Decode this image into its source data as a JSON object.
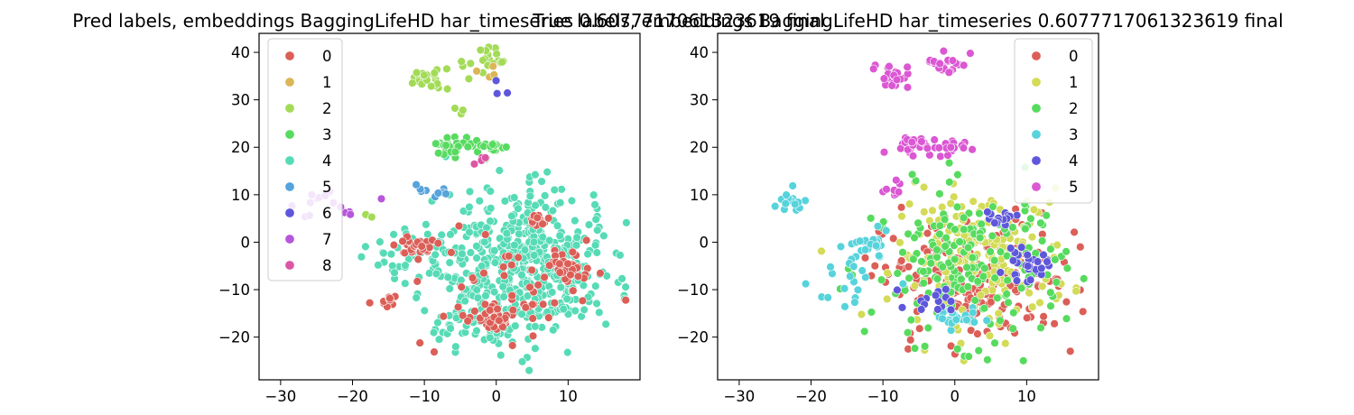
{
  "chart_data": [
    {
      "type": "scatter",
      "title": "Pred labels, embeddings BaggingLifeHD har_timeseries 0.6077717061323619 final",
      "xlim": [
        -33,
        20
      ],
      "ylim": [
        -29,
        44
      ],
      "xticks": [
        -30,
        -20,
        -10,
        0,
        10
      ],
      "yticks": [
        -20,
        -10,
        0,
        10,
        20,
        30,
        40
      ],
      "xtick_labels": [
        "−30",
        "−20",
        "−10",
        "0",
        "10"
      ],
      "ytick_labels": [
        "−20",
        "−10",
        "0",
        "10",
        "20",
        "30",
        "40"
      ],
      "grid": false,
      "legend_position": "upper-left",
      "legend": [
        "0",
        "1",
        "2",
        "3",
        "4",
        "5",
        "6",
        "7",
        "8"
      ],
      "colors": [
        "#db5f57",
        "#dbb657",
        "#a3db57",
        "#57db5f",
        "#57dbb6",
        "#57a3db",
        "#5f57db",
        "#b657db",
        "#db57a3"
      ],
      "clusters": [
        {
          "label": 4,
          "cx": 4,
          "cy": -5,
          "sx": 6.2,
          "sy": 7.5,
          "n": 520
        },
        {
          "label": 4,
          "cx": -12,
          "cy": -3,
          "sx": 3,
          "sy": 4,
          "n": 40
        },
        {
          "label": 4,
          "cx": -4,
          "cy": -18,
          "sx": 4,
          "sy": 3,
          "n": 40
        },
        {
          "label": 0,
          "cx": -11,
          "cy": -1,
          "sx": 1.3,
          "sy": 1,
          "n": 28
        },
        {
          "label": 0,
          "cx": -0.5,
          "cy": -16,
          "sx": 1.8,
          "sy": 1.2,
          "n": 45
        },
        {
          "label": 0,
          "cx": 10,
          "cy": -5,
          "sx": 1.5,
          "sy": 2,
          "n": 30
        },
        {
          "label": 0,
          "cx": 6,
          "cy": 5,
          "sx": 1.2,
          "sy": 0.8,
          "n": 14
        },
        {
          "label": 0,
          "cx": -15,
          "cy": -12.5,
          "sx": 1,
          "sy": 0.8,
          "n": 10
        },
        {
          "label": 0,
          "cx": 3,
          "cy": -9,
          "sx": 6,
          "sy": 6,
          "n": 45
        },
        {
          "label": 2,
          "cx": -9,
          "cy": 35,
          "sx": 1.3,
          "sy": 1.3,
          "n": 22
        },
        {
          "label": 2,
          "cx": -1,
          "cy": 38,
          "sx": 1.5,
          "sy": 1.5,
          "n": 22
        },
        {
          "label": 3,
          "cx": -6,
          "cy": 20.5,
          "sx": 1.5,
          "sy": 1,
          "n": 28
        },
        {
          "label": 3,
          "cx": -1,
          "cy": 19.8,
          "sx": 1.2,
          "sy": 1,
          "n": 18
        },
        {
          "label": 1,
          "cx": -1,
          "cy": 36.5,
          "sx": 0.8,
          "sy": 0.8,
          "n": 4
        },
        {
          "label": 6,
          "cx": 0,
          "cy": 32.5,
          "sx": 0.8,
          "sy": 0.8,
          "n": 3
        },
        {
          "label": 5,
          "cx": -10,
          "cy": 11,
          "sx": 0.8,
          "sy": 0.6,
          "n": 5
        },
        {
          "label": 5,
          "cx": -7,
          "cy": 10.5,
          "sx": 0.8,
          "sy": 0.6,
          "n": 4
        },
        {
          "label": 8,
          "cx": -3,
          "cy": 17,
          "sx": 0.8,
          "sy": 0.8,
          "n": 4
        },
        {
          "label": 7,
          "cx": -21,
          "cy": 7,
          "sx": 0.6,
          "sy": 0.5,
          "n": 3
        },
        {
          "label": 7,
          "cx": -24.5,
          "cy": 8,
          "sx": 2.5,
          "sy": 2,
          "n": 12
        },
        {
          "label": 2,
          "cx": -5.5,
          "cy": 27.5,
          "sx": 0.5,
          "sy": 0.5,
          "n": 3
        },
        {
          "label": 2,
          "cx": -17.5,
          "cy": 5,
          "sx": 0.5,
          "sy": 0.5,
          "n": 2
        }
      ]
    },
    {
      "type": "scatter",
      "title": "True labels, embeddings BaggingLifeHD har_timeseries 0.6077717061323619 final",
      "xlim": [
        -33,
        20
      ],
      "ylim": [
        -29,
        44
      ],
      "xticks": [
        -30,
        -20,
        -10,
        0,
        10
      ],
      "yticks": [
        -20,
        -10,
        0,
        10,
        20,
        30,
        40
      ],
      "xtick_labels": [
        "−30",
        "−20",
        "−10",
        "0",
        "10"
      ],
      "ytick_labels": [
        "−20",
        "−10",
        "0",
        "10",
        "20",
        "30",
        "40"
      ],
      "grid": false,
      "legend_position": "upper-right",
      "legend": [
        "0",
        "1",
        "2",
        "3",
        "4",
        "5"
      ],
      "colors": [
        "#db5f57",
        "#d3db57",
        "#57db5e",
        "#57d3db",
        "#5e57db",
        "#db57d3"
      ],
      "clusters": [
        {
          "label": 0,
          "cx": 3,
          "cy": -8,
          "sx": 6.5,
          "sy": 7,
          "n": 200
        },
        {
          "label": 1,
          "cx": 4,
          "cy": -3,
          "sx": 6,
          "sy": 7,
          "n": 180
        },
        {
          "label": 2,
          "cx": 2,
          "cy": -5,
          "sx": 6.8,
          "sy": 8,
          "n": 200
        },
        {
          "label": 3,
          "cx": -12,
          "cy": -1,
          "sx": 1.5,
          "sy": 1.5,
          "n": 25
        },
        {
          "label": 3,
          "cx": 0,
          "cy": -16,
          "sx": 1.5,
          "sy": 1.2,
          "n": 25
        },
        {
          "label": 3,
          "cx": -23,
          "cy": 8,
          "sx": 1.5,
          "sy": 1.5,
          "n": 14
        },
        {
          "label": 3,
          "cx": -14,
          "cy": -8,
          "sx": 3,
          "sy": 4,
          "n": 18
        },
        {
          "label": 4,
          "cx": 10,
          "cy": -5,
          "sx": 1.5,
          "sy": 1.5,
          "n": 28
        },
        {
          "label": 4,
          "cx": 6,
          "cy": 5,
          "sx": 1.2,
          "sy": 0.8,
          "n": 15
        },
        {
          "label": 4,
          "cx": -2,
          "cy": -12,
          "sx": 2,
          "sy": 1.5,
          "n": 15
        },
        {
          "label": 5,
          "cx": -9,
          "cy": 35,
          "sx": 1.3,
          "sy": 1.3,
          "n": 22
        },
        {
          "label": 5,
          "cx": -1,
          "cy": 38,
          "sx": 1.5,
          "sy": 1.5,
          "n": 22
        },
        {
          "label": 5,
          "cx": -6,
          "cy": 20.5,
          "sx": 1.5,
          "sy": 1,
          "n": 28
        },
        {
          "label": 5,
          "cx": -1,
          "cy": 19.8,
          "sx": 1.2,
          "sy": 1,
          "n": 18
        },
        {
          "label": 5,
          "cx": -9,
          "cy": 11,
          "sx": 1.2,
          "sy": 1,
          "n": 8
        }
      ]
    }
  ]
}
